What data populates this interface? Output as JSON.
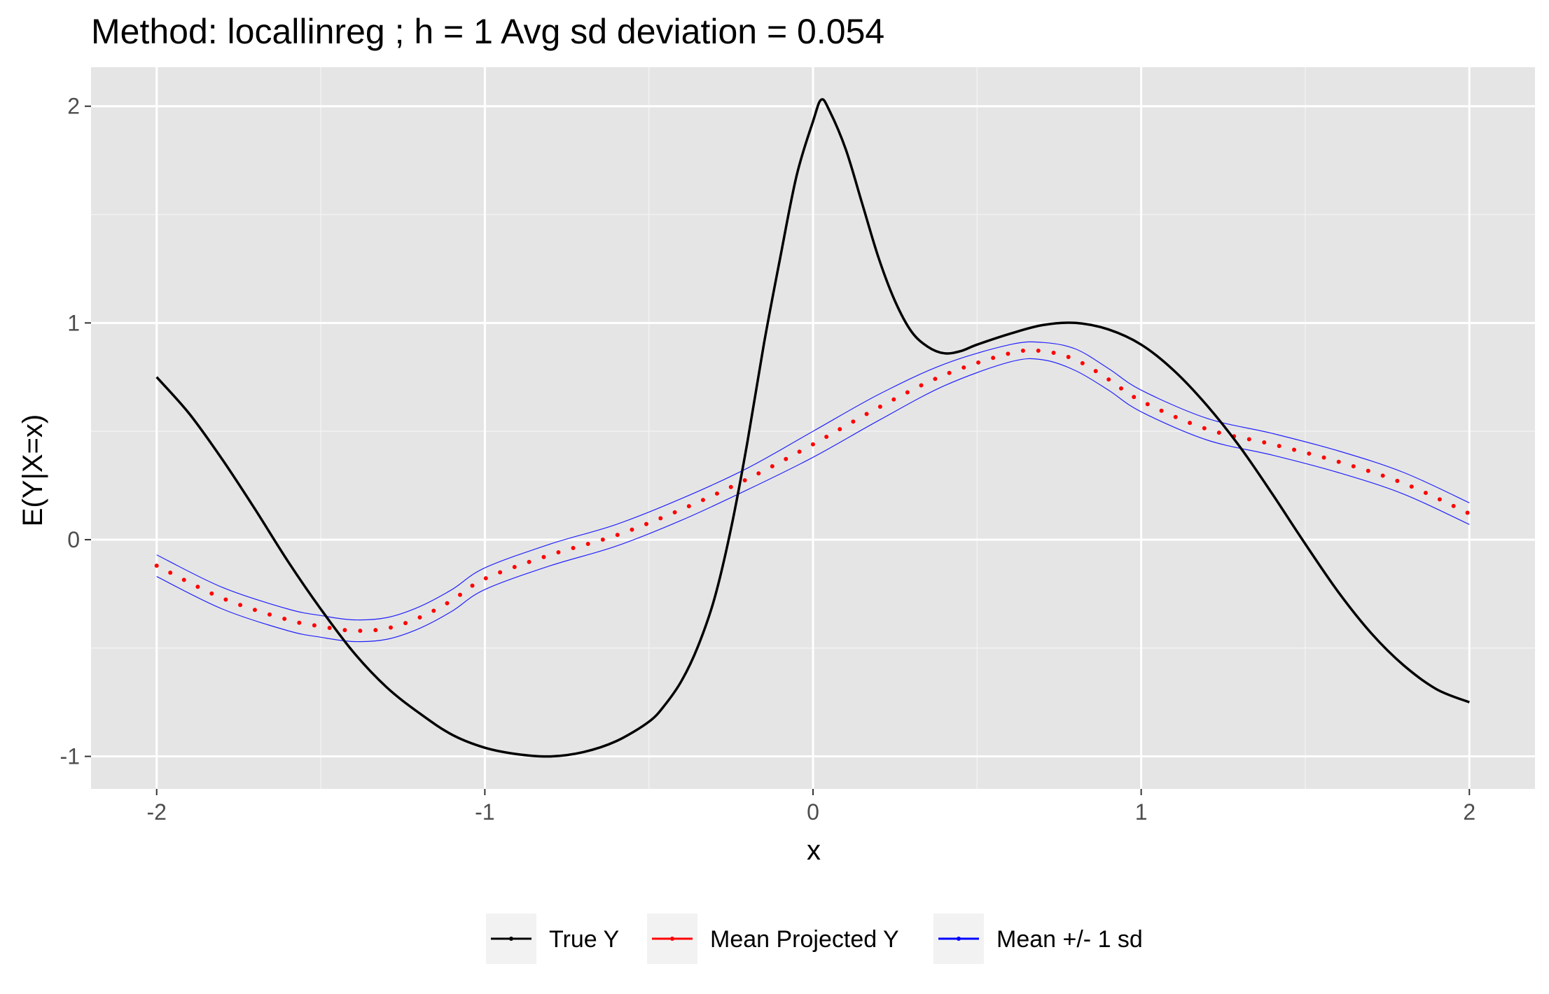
{
  "chart_data": {
    "type": "line",
    "title": "Method: locallinreg ; h = 1 Avg sd deviation = 0.054",
    "xlabel": "x",
    "ylabel": "E(Y|X=x)",
    "xlim": [
      -2.2,
      2.2
    ],
    "ylim": [
      -1.15,
      2.18
    ],
    "x_ticks": [
      -2,
      -1,
      0,
      1,
      2
    ],
    "x_tick_labels": [
      "-2",
      "-1",
      "0",
      "1",
      "2"
    ],
    "y_ticks": [
      -1,
      0,
      1,
      2
    ],
    "y_tick_labels": [
      "-1",
      "0",
      "1",
      "2"
    ],
    "grid": true,
    "panel_background": "#e5e5e5",
    "legend_position": "bottom",
    "series": [
      {
        "name": "True Y",
        "color": "#000000",
        "style": "line",
        "x": [
          -2.0,
          -1.9,
          -1.8,
          -1.7,
          -1.6,
          -1.5,
          -1.4,
          -1.3,
          -1.2,
          -1.1,
          -1.0,
          -0.9,
          -0.8,
          -0.7,
          -0.6,
          -0.5,
          -0.45,
          -0.4,
          -0.35,
          -0.3,
          -0.25,
          -0.2,
          -0.15,
          -0.1,
          -0.05,
          0.0,
          0.025,
          0.05,
          0.1,
          0.15,
          0.2,
          0.25,
          0.3,
          0.35,
          0.4,
          0.45,
          0.5,
          0.6,
          0.7,
          0.8,
          0.9,
          1.0,
          1.1,
          1.2,
          1.3,
          1.4,
          1.5,
          1.6,
          1.7,
          1.8,
          1.9,
          2.0
        ],
        "y": [
          0.75,
          0.58,
          0.37,
          0.14,
          -0.1,
          -0.32,
          -0.52,
          -0.68,
          -0.8,
          -0.9,
          -0.96,
          -0.99,
          -1.0,
          -0.98,
          -0.93,
          -0.84,
          -0.76,
          -0.65,
          -0.49,
          -0.27,
          0.05,
          0.45,
          0.9,
          1.3,
          1.68,
          1.93,
          2.03,
          1.98,
          1.8,
          1.55,
          1.3,
          1.1,
          0.96,
          0.89,
          0.86,
          0.87,
          0.9,
          0.95,
          0.99,
          1.0,
          0.97,
          0.9,
          0.78,
          0.62,
          0.43,
          0.21,
          -0.02,
          -0.24,
          -0.43,
          -0.58,
          -0.69,
          -0.75
        ]
      },
      {
        "name": "Mean Projected Y",
        "color": "#ff0000",
        "style": "dotted",
        "x": [
          -2.0,
          -1.8,
          -1.6,
          -1.5,
          -1.4,
          -1.3,
          -1.2,
          -1.1,
          -1.0,
          -0.8,
          -0.6,
          -0.4,
          -0.2,
          0.0,
          0.2,
          0.4,
          0.6,
          0.7,
          0.8,
          0.9,
          1.0,
          1.2,
          1.4,
          1.6,
          1.8,
          2.0
        ],
        "y": [
          -0.12,
          -0.27,
          -0.37,
          -0.4,
          -0.42,
          -0.41,
          -0.36,
          -0.28,
          -0.18,
          -0.07,
          0.02,
          0.14,
          0.28,
          0.44,
          0.61,
          0.76,
          0.86,
          0.87,
          0.83,
          0.74,
          0.64,
          0.51,
          0.44,
          0.36,
          0.26,
          0.12
        ]
      },
      {
        "name": "Mean +/- 1 sd",
        "color": "#0000ff",
        "style": "thin",
        "x": [
          -2.0,
          -1.8,
          -1.6,
          -1.5,
          -1.4,
          -1.3,
          -1.2,
          -1.1,
          -1.0,
          -0.8,
          -0.6,
          -0.4,
          -0.2,
          0.0,
          0.2,
          0.4,
          0.6,
          0.7,
          0.8,
          0.9,
          1.0,
          1.2,
          1.4,
          1.6,
          1.8,
          2.0
        ],
        "y": [
          -0.07,
          -0.22,
          -0.32,
          -0.35,
          -0.37,
          -0.36,
          -0.31,
          -0.23,
          -0.13,
          -0.02,
          0.07,
          0.19,
          0.33,
          0.5,
          0.67,
          0.81,
          0.9,
          0.91,
          0.88,
          0.79,
          0.69,
          0.56,
          0.49,
          0.41,
          0.31,
          0.17
        ]
      },
      {
        "name": "",
        "color": "#0000ff",
        "style": "thin",
        "x": [
          -2.0,
          -1.8,
          -1.6,
          -1.5,
          -1.4,
          -1.3,
          -1.2,
          -1.1,
          -1.0,
          -0.8,
          -0.6,
          -0.4,
          -0.2,
          0.0,
          0.2,
          0.4,
          0.6,
          0.7,
          0.8,
          0.9,
          1.0,
          1.2,
          1.4,
          1.6,
          1.8,
          2.0
        ],
        "y": [
          -0.17,
          -0.32,
          -0.42,
          -0.45,
          -0.47,
          -0.46,
          -0.41,
          -0.33,
          -0.23,
          -0.12,
          -0.03,
          0.09,
          0.23,
          0.38,
          0.55,
          0.71,
          0.82,
          0.83,
          0.78,
          0.69,
          0.59,
          0.46,
          0.39,
          0.31,
          0.21,
          0.07
        ]
      }
    ],
    "legend": [
      {
        "label": "True Y",
        "color": "#000000"
      },
      {
        "label": "Mean Projected Y",
        "color": "#ff0000"
      },
      {
        "label": "Mean +/- 1 sd",
        "color": "#0000ff"
      }
    ]
  }
}
